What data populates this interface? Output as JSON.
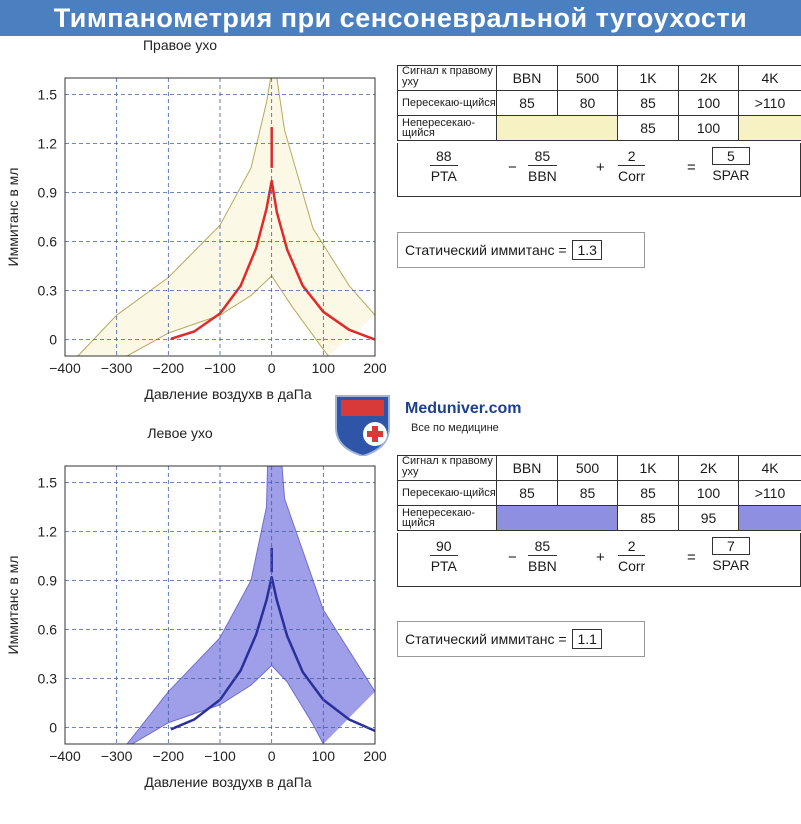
{
  "title": "Тимпанометрия при сенсоневральной тугоухости",
  "logo": {
    "name": "Meduniver.com",
    "tagline": "Все по медицине"
  },
  "chart_data": [
    {
      "type": "line",
      "title": "Правое ухо",
      "xlabel": "Давление воздухв в даПа",
      "ylabel": "Иммитанс в мл",
      "xlim": [
        -400,
        200
      ],
      "ylim": [
        -0.1,
        1.6
      ],
      "xticks": [
        -400,
        -300,
        -200,
        -100,
        0,
        100,
        200
      ],
      "yticks": [
        0,
        0.3,
        0.6,
        0.9,
        1.2,
        1.5
      ],
      "xtick_labels": [
        "−400",
        "−300",
        "−200",
        "−100",
        "0",
        "100",
        "200"
      ],
      "ytick_labels": [
        "0",
        "0.3",
        "0.6",
        "0.9",
        "1.2",
        "1.5"
      ],
      "grid": true,
      "band_color": "#fbf8e6",
      "band_edge_color": "#b8a85a",
      "curve_color": "#e02b2b",
      "band_upper": [
        [
          -375,
          -0.1
        ],
        [
          -300,
          0.15
        ],
        [
          -200,
          0.38
        ],
        [
          -100,
          0.7
        ],
        [
          -40,
          1.05
        ],
        [
          -10,
          1.45
        ],
        [
          -2,
          1.6
        ],
        [
          10,
          1.6
        ],
        [
          25,
          1.28
        ],
        [
          80,
          0.68
        ],
        [
          150,
          0.33
        ],
        [
          200,
          0.15
        ]
      ],
      "band_lower": [
        [
          -280,
          -0.1
        ],
        [
          -200,
          0.04
        ],
        [
          -100,
          0.15
        ],
        [
          -40,
          0.27
        ],
        [
          0,
          0.39
        ],
        [
          40,
          0.2
        ],
        [
          100,
          -0.06
        ],
        [
          110,
          -0.1
        ]
      ],
      "series": [
        {
          "name": "right-ear",
          "points": [
            [
              -195,
              0.005
            ],
            [
              -150,
              0.05
            ],
            [
              -100,
              0.16
            ],
            [
              -60,
              0.33
            ],
            [
              -30,
              0.56
            ],
            [
              -10,
              0.8
            ],
            [
              0,
              0.97
            ],
            [
              10,
              0.78
            ],
            [
              30,
              0.55
            ],
            [
              60,
              0.33
            ],
            [
              100,
              0.17
            ],
            [
              150,
              0.06
            ],
            [
              200,
              0.0
            ]
          ]
        },
        {
          "name": "right-peak",
          "points": [
            [
              0,
              1.05
            ],
            [
              0,
              1.3
            ]
          ]
        }
      ]
    },
    {
      "type": "line",
      "title": "Левое ухо",
      "xlabel": "Давление воздухв в даПа",
      "ylabel": "Иммитанс в мл",
      "xlim": [
        -400,
        200
      ],
      "ylim": [
        -0.1,
        1.6
      ],
      "xticks": [
        -400,
        -300,
        -200,
        -100,
        0,
        100,
        200
      ],
      "yticks": [
        0,
        0.3,
        0.6,
        0.9,
        1.2,
        1.5
      ],
      "xtick_labels": [
        "−400",
        "−300",
        "−200",
        "−100",
        "0",
        "100",
        "200"
      ],
      "ytick_labels": [
        "0",
        "0.3",
        "0.6",
        "0.9",
        "1.2",
        "1.5"
      ],
      "grid": true,
      "band_color": "#9e9ee9",
      "band_edge_color": "#6f6fcf",
      "curve_color": "#2b2f9a",
      "band_upper": [
        [
          -280,
          -0.1
        ],
        [
          -200,
          0.22
        ],
        [
          -100,
          0.55
        ],
        [
          -40,
          0.9
        ],
        [
          -10,
          1.35
        ],
        [
          -8,
          1.6
        ],
        [
          20,
          1.6
        ],
        [
          25,
          1.4
        ],
        [
          100,
          0.72
        ],
        [
          180,
          0.32
        ],
        [
          200,
          0.22
        ]
      ],
      "band_lower": [
        [
          -270,
          -0.1
        ],
        [
          -200,
          0.03
        ],
        [
          -100,
          0.14
        ],
        [
          -40,
          0.26
        ],
        [
          0,
          0.38
        ],
        [
          30,
          0.28
        ],
        [
          80,
          0.02
        ],
        [
          100,
          -0.1
        ]
      ],
      "series": [
        {
          "name": "left-ear",
          "points": [
            [
              -195,
              -0.01
            ],
            [
              -150,
              0.05
            ],
            [
              -100,
              0.17
            ],
            [
              -60,
              0.35
            ],
            [
              -30,
              0.57
            ],
            [
              -10,
              0.78
            ],
            [
              0,
              0.92
            ],
            [
              10,
              0.78
            ],
            [
              30,
              0.56
            ],
            [
              60,
              0.34
            ],
            [
              100,
              0.17
            ],
            [
              150,
              0.05
            ],
            [
              200,
              -0.02
            ]
          ]
        },
        {
          "name": "left-peak",
          "points": [
            [
              0,
              0.95
            ],
            [
              0,
              1.1
            ]
          ]
        }
      ]
    }
  ],
  "right_table": {
    "header_label": "Сигнал к правому уху",
    "freqs": [
      "BBN",
      "500",
      "1K",
      "2K",
      "4K"
    ],
    "row1_label": "Пересекаю-щийся",
    "row1": [
      "85",
      "80",
      "85",
      "100",
      ">110"
    ],
    "row2_label": "Непересекаю-щийся",
    "row2": [
      "",
      "",
      "85",
      "100",
      ""
    ],
    "formula": {
      "pta": "88",
      "pta_label": "PTA",
      "minus": "−",
      "bbn": "85",
      "bbn_label": "BBN",
      "plus": "+",
      "corr": "2",
      "corr_label": "Corr",
      "eq": "=",
      "spar": "5",
      "spar_label": "SPAR"
    },
    "static_label": "Статический иммитанс",
    "static_eq": "=",
    "static_value": "1.3"
  },
  "left_table": {
    "header_label": "Сигнал к правому уху",
    "freqs": [
      "BBN",
      "500",
      "1K",
      "2K",
      "4K"
    ],
    "row1_label": "Пересекаю-щийся",
    "row1": [
      "85",
      "85",
      "85",
      "100",
      ">110"
    ],
    "row2_label": "Непересекаю-щийся",
    "row2": [
      "",
      "",
      "85",
      "95",
      ""
    ],
    "formula": {
      "pta": "90",
      "pta_label": "PTA",
      "minus": "−",
      "bbn": "85",
      "bbn_label": "BBN",
      "plus": "+",
      "corr": "2",
      "corr_label": "Corr",
      "eq": "=",
      "spar": "7",
      "spar_label": "SPAR"
    },
    "static_label": "Статический иммитанс",
    "static_eq": "=",
    "static_value": "1.1"
  }
}
